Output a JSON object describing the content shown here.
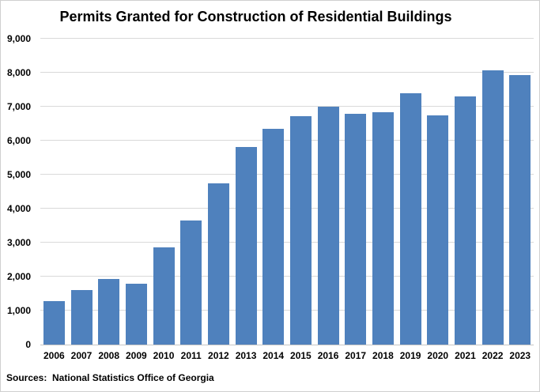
{
  "chart_data": {
    "type": "bar",
    "title": "Permits Granted for Construction of Residential Buildings",
    "source": "Sources:  National Statistics Office of Georgia",
    "categories": [
      "2006",
      "2007",
      "2008",
      "2009",
      "2010",
      "2011",
      "2012",
      "2013",
      "2014",
      "2015",
      "2016",
      "2017",
      "2018",
      "2019",
      "2020",
      "2021",
      "2022",
      "2023"
    ],
    "values": [
      1280,
      1610,
      1920,
      1780,
      2870,
      3640,
      4750,
      5820,
      6350,
      6720,
      7000,
      6800,
      6840,
      7390,
      6750,
      7310,
      8080,
      7930
    ],
    "xlabel": "",
    "ylabel": "",
    "ylim": [
      0,
      9000
    ],
    "ytick_interval": 1000,
    "ytick_labels": [
      "0",
      "1,000",
      "2,000",
      "3,000",
      "4,000",
      "5,000",
      "6,000",
      "7,000",
      "8,000",
      "9,000"
    ],
    "grid": true,
    "legend": "none",
    "bar_color": "#4F81BD",
    "gridline_color": "#D9D9D9",
    "axis_color": "#C6C6C6",
    "text_color": "#000000",
    "background_color": "#FFFFFF"
  }
}
